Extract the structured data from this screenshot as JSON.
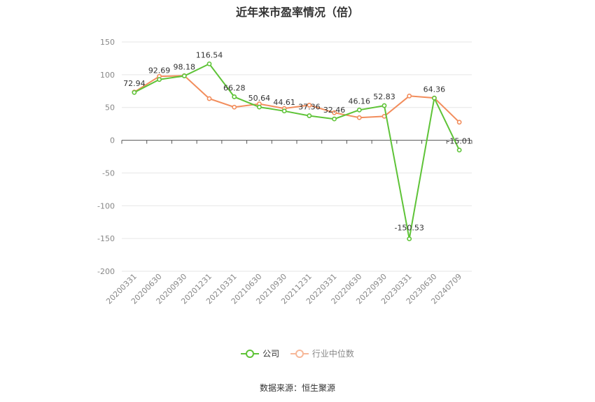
{
  "chart_data": {
    "type": "line",
    "title": "近年来市盈率情况（倍）",
    "categories": [
      "20200331",
      "20200630",
      "20200930",
      "20201231",
      "20210331",
      "20210630",
      "20210930",
      "20211231",
      "20220331",
      "20220630",
      "20220930",
      "20230331",
      "20230630",
      "20240709"
    ],
    "series": [
      {
        "name": "公司",
        "color": "#5ec337",
        "values": [
          72.94,
          92.69,
          98.18,
          116.54,
          66.28,
          50.64,
          44.61,
          37.36,
          32.46,
          46.16,
          52.83,
          -150.53,
          64.36,
          -15.01
        ],
        "labels": [
          "72.94",
          "92.69",
          "98.18",
          "116.54",
          "66.28",
          "50.64",
          "44.61",
          "37.36",
          "32.46",
          "46.16",
          "52.83",
          "-150.53",
          "64.36",
          "-15.01"
        ]
      },
      {
        "name": "行业中位数",
        "color": "#f28d5c",
        "values": [
          73.5,
          97.5,
          98.5,
          63.5,
          50.5,
          55.5,
          48.5,
          53.5,
          42.0,
          34.5,
          36.5,
          67.5,
          64.5,
          27.5
        ]
      }
    ],
    "yticks": [
      "150",
      "100",
      "50",
      "0",
      "-50",
      "-100",
      "-150",
      "-200"
    ],
    "ylim": [
      -200,
      150
    ],
    "grid": true,
    "legend_position": "bottom"
  },
  "source": "数据来源：恒生聚源"
}
